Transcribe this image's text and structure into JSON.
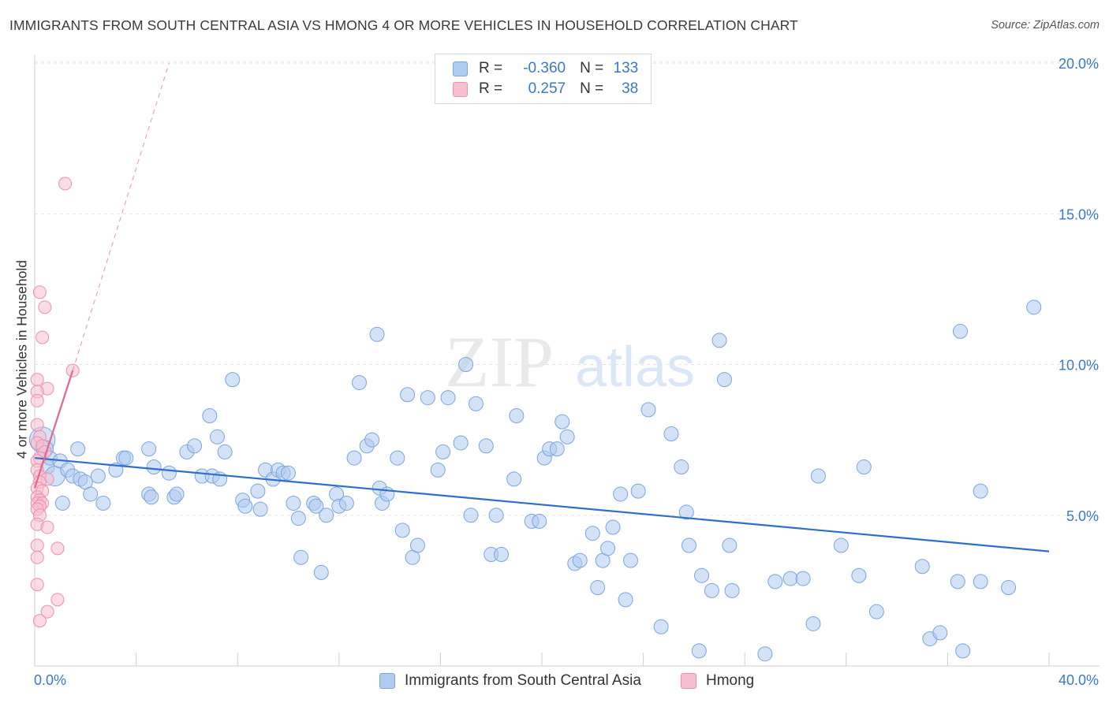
{
  "title": "IMMIGRANTS FROM SOUTH CENTRAL ASIA VS HMONG 4 OR MORE VEHICLES IN HOUSEHOLD CORRELATION CHART",
  "source": "Source: ZipAtlas.com",
  "watermark": {
    "zip": "ZIP",
    "atlas": "atlas"
  },
  "legend": {
    "rows": [
      {
        "r_label": "R =",
        "r_value": "-0.360",
        "n_label": "N =",
        "n_value": "133"
      },
      {
        "r_label": "R =",
        "r_value": "0.257",
        "n_label": "N =",
        "n_value": "38"
      }
    ]
  },
  "colors": {
    "blue_fill": "#aecbf0",
    "blue_stroke": "#7aa6de",
    "blue_line": "#2f6fcc",
    "pink_fill": "#f7bfd0",
    "pink_stroke": "#ee8fae",
    "pink_line": "#e2668f",
    "tick_label": "#3b78c8",
    "grid": "#e4e4e4"
  },
  "chart_data": {
    "type": "scatter",
    "title": "IMMIGRANTS FROM SOUTH CENTRAL ASIA VS HMONG 4 OR MORE VEHICLES IN HOUSEHOLD CORRELATION CHART",
    "xlabel": "",
    "ylabel": "4 or more Vehicles in Household",
    "xlim": [
      0,
      40
    ],
    "ylim": [
      0,
      20.5
    ],
    "x_tick_labels": [
      "0.0%",
      "40.0%"
    ],
    "y_ticks": [
      5,
      10,
      15,
      20
    ],
    "y_tick_labels": [
      "5.0%",
      "10.0%",
      "15.0%",
      "20.0%"
    ],
    "legend_position": "bottom",
    "series": [
      {
        "name": "Immigrants from South Central Asia",
        "r": -0.36,
        "n": 133,
        "trend": {
          "x": [
            0,
            40
          ],
          "y": [
            6.9,
            3.8
          ]
        },
        "points": [
          [
            0.3,
            7.5,
            1.8
          ],
          [
            0.4,
            7.2,
            1.2
          ],
          [
            0.5,
            6.6,
            1
          ],
          [
            0.6,
            6.9,
            1
          ],
          [
            0.8,
            6.3,
            1.4
          ],
          [
            1.0,
            6.8,
            1
          ],
          [
            1.1,
            5.4,
            1
          ],
          [
            1.3,
            6.5,
            1
          ],
          [
            1.7,
            7.2,
            1
          ],
          [
            1.5,
            6.3,
            1
          ],
          [
            1.8,
            6.2,
            1
          ],
          [
            2.0,
            6.1,
            1
          ],
          [
            2.2,
            5.7,
            1
          ],
          [
            2.5,
            6.3,
            1
          ],
          [
            3.2,
            6.5,
            1
          ],
          [
            3.5,
            6.9,
            1
          ],
          [
            2.7,
            5.4,
            1
          ],
          [
            3.6,
            6.9,
            1
          ],
          [
            4.5,
            7.2,
            1
          ],
          [
            4.7,
            6.6,
            1
          ],
          [
            4.5,
            5.7,
            1
          ],
          [
            4.6,
            5.6,
            1
          ],
          [
            5.3,
            6.4,
            1
          ],
          [
            5.5,
            5.6,
            1
          ],
          [
            5.6,
            5.7,
            1
          ],
          [
            6.0,
            7.1,
            1
          ],
          [
            6.3,
            7.3,
            1
          ],
          [
            6.6,
            6.3,
            1
          ],
          [
            6.9,
            8.3,
            1
          ],
          [
            7.2,
            7.6,
            1
          ],
          [
            7.0,
            6.3,
            1
          ],
          [
            7.3,
            6.2,
            1
          ],
          [
            7.5,
            7.1,
            1
          ],
          [
            7.8,
            9.5,
            1
          ],
          [
            8.2,
            5.5,
            1
          ],
          [
            8.3,
            5.3,
            1
          ],
          [
            8.8,
            5.8,
            1
          ],
          [
            8.9,
            5.2,
            1
          ],
          [
            9.1,
            6.5,
            1
          ],
          [
            9.4,
            6.2,
            1
          ],
          [
            9.6,
            6.5,
            1
          ],
          [
            9.8,
            6.4,
            1
          ],
          [
            10.2,
            5.4,
            1
          ],
          [
            10.4,
            4.9,
            1
          ],
          [
            10.0,
            6.4,
            1
          ],
          [
            10.5,
            3.6,
            1
          ],
          [
            11.0,
            5.4,
            1
          ],
          [
            11.1,
            5.3,
            1
          ],
          [
            11.3,
            3.1,
            1
          ],
          [
            11.5,
            5.0,
            1
          ],
          [
            11.9,
            5.7,
            1
          ],
          [
            12.0,
            5.3,
            1
          ],
          [
            12.3,
            5.4,
            1
          ],
          [
            12.6,
            6.9,
            1
          ],
          [
            12.8,
            9.4,
            1
          ],
          [
            13.1,
            7.3,
            1
          ],
          [
            13.3,
            7.5,
            1
          ],
          [
            13.6,
            5.9,
            1
          ],
          [
            13.7,
            5.4,
            1
          ],
          [
            13.9,
            5.7,
            1
          ],
          [
            13.5,
            11.0,
            1
          ],
          [
            14.3,
            6.9,
            1
          ],
          [
            14.5,
            4.5,
            1
          ],
          [
            14.7,
            9.0,
            1
          ],
          [
            14.9,
            3.6,
            1
          ],
          [
            15.1,
            4.0,
            1
          ],
          [
            15.5,
            8.9,
            1
          ],
          [
            15.9,
            6.5,
            1
          ],
          [
            16.1,
            7.1,
            1
          ],
          [
            16.3,
            8.9,
            1
          ],
          [
            16.8,
            7.4,
            1
          ],
          [
            17.0,
            10.0,
            1
          ],
          [
            17.2,
            5.0,
            1
          ],
          [
            17.4,
            8.7,
            1
          ],
          [
            17.8,
            7.3,
            1
          ],
          [
            18.0,
            3.7,
            1
          ],
          [
            18.2,
            5.0,
            1
          ],
          [
            18.4,
            3.7,
            1
          ],
          [
            18.9,
            6.2,
            1
          ],
          [
            19.0,
            8.3,
            1
          ],
          [
            19.6,
            4.8,
            1
          ],
          [
            19.9,
            4.8,
            1
          ],
          [
            20.1,
            6.9,
            1
          ],
          [
            20.3,
            7.2,
            1
          ],
          [
            20.6,
            7.2,
            1
          ],
          [
            20.8,
            8.1,
            1
          ],
          [
            21.0,
            7.6,
            1
          ],
          [
            21.3,
            3.4,
            1
          ],
          [
            21.5,
            3.5,
            1
          ],
          [
            22.0,
            4.4,
            1
          ],
          [
            22.2,
            2.6,
            1
          ],
          [
            22.4,
            3.5,
            1
          ],
          [
            22.6,
            3.9,
            1
          ],
          [
            22.8,
            4.6,
            1
          ],
          [
            23.1,
            5.7,
            1
          ],
          [
            23.3,
            2.2,
            1
          ],
          [
            23.5,
            3.5,
            1
          ],
          [
            23.8,
            5.8,
            1
          ],
          [
            24.2,
            8.5,
            1
          ],
          [
            24.7,
            1.3,
            1
          ],
          [
            25.1,
            7.7,
            1
          ],
          [
            25.5,
            6.6,
            1
          ],
          [
            25.7,
            5.1,
            1
          ],
          [
            25.8,
            4.0,
            1
          ],
          [
            26.2,
            0.5,
            1
          ],
          [
            26.3,
            3.0,
            1
          ],
          [
            26.7,
            2.5,
            1
          ],
          [
            27.0,
            10.8,
            1
          ],
          [
            27.2,
            9.5,
            1
          ],
          [
            27.4,
            4.0,
            1
          ],
          [
            27.5,
            2.5,
            1
          ],
          [
            28.8,
            0.4,
            1
          ],
          [
            29.2,
            2.8,
            1
          ],
          [
            29.8,
            2.9,
            1
          ],
          [
            30.3,
            2.9,
            1
          ],
          [
            30.7,
            1.4,
            1
          ],
          [
            30.9,
            6.3,
            1
          ],
          [
            31.8,
            4.0,
            1
          ],
          [
            32.5,
            3.0,
            1
          ],
          [
            32.7,
            6.6,
            1
          ],
          [
            33.2,
            1.8,
            1
          ],
          [
            35.0,
            3.3,
            1
          ],
          [
            35.3,
            0.9,
            1
          ],
          [
            35.7,
            1.1,
            1
          ],
          [
            36.4,
            2.8,
            1
          ],
          [
            36.5,
            11.1,
            1
          ],
          [
            36.6,
            0.5,
            1
          ],
          [
            37.3,
            5.8,
            1
          ],
          [
            37.3,
            2.8,
            1
          ],
          [
            38.4,
            2.6,
            1
          ],
          [
            39.4,
            11.9,
            1
          ]
        ]
      },
      {
        "name": "Hmong",
        "r": 0.257,
        "n": 38,
        "trend": {
          "x": [
            0,
            1.5
          ],
          "y": [
            5.9,
            9.8
          ]
        },
        "trend_extension": {
          "x": [
            1.5,
            5.3
          ],
          "y": [
            9.8,
            20.0
          ]
        },
        "points": [
          [
            1.2,
            16.0,
            1
          ],
          [
            0.2,
            12.4,
            1
          ],
          [
            0.4,
            11.9,
            1
          ],
          [
            0.3,
            10.9,
            1
          ],
          [
            0.1,
            9.5,
            1
          ],
          [
            0.5,
            9.2,
            1
          ],
          [
            0.1,
            9.1,
            1
          ],
          [
            1.5,
            9.8,
            1
          ],
          [
            0.1,
            8.8,
            1
          ],
          [
            0.1,
            8.0,
            1
          ],
          [
            0.2,
            7.6,
            1
          ],
          [
            0.1,
            7.4,
            1
          ],
          [
            0.3,
            7.3,
            1
          ],
          [
            0.4,
            7.1,
            1
          ],
          [
            0.2,
            6.9,
            1
          ],
          [
            0.1,
            6.8,
            1
          ],
          [
            0.1,
            6.5,
            1
          ],
          [
            0.2,
            6.3,
            1
          ],
          [
            0.5,
            6.2,
            1
          ],
          [
            0.2,
            6.1,
            1
          ],
          [
            0.1,
            5.9,
            1
          ],
          [
            0.3,
            5.8,
            1
          ],
          [
            0.1,
            5.6,
            1
          ],
          [
            0.2,
            5.5,
            1
          ],
          [
            0.1,
            5.4,
            1
          ],
          [
            0.3,
            5.4,
            1
          ],
          [
            0.2,
            5.3,
            1
          ],
          [
            0.1,
            5.2,
            1
          ],
          [
            0.2,
            5.0,
            1
          ],
          [
            0.1,
            4.7,
            1
          ],
          [
            0.5,
            4.6,
            1
          ],
          [
            0.1,
            4.0,
            1
          ],
          [
            0.9,
            3.9,
            1
          ],
          [
            0.1,
            3.6,
            1
          ],
          [
            0.1,
            2.7,
            1
          ],
          [
            0.9,
            2.2,
            1
          ],
          [
            0.5,
            1.8,
            1
          ],
          [
            0.2,
            1.5,
            1
          ]
        ]
      }
    ]
  }
}
